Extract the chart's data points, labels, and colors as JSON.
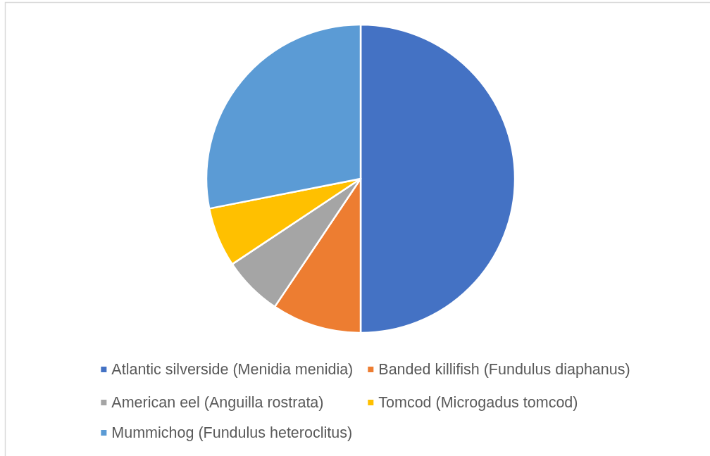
{
  "chart_data": {
    "type": "pie",
    "categories": [
      "Atlantic silverside (Menidia menidia)",
      "Banded killifish (Fundulus diaphanus)",
      "American eel (Anguilla rostrata)",
      "Tomcod (Microgadus tomcod)",
      "Mummichog (Fundulus heteroclitus)"
    ],
    "values": [
      50,
      9.4,
      6.25,
      6.25,
      28.1
    ],
    "colors": [
      "#4472c4",
      "#ed7d31",
      "#a5a5a5",
      "#ffc000",
      "#5b9bd5"
    ],
    "legend": "bottom"
  }
}
